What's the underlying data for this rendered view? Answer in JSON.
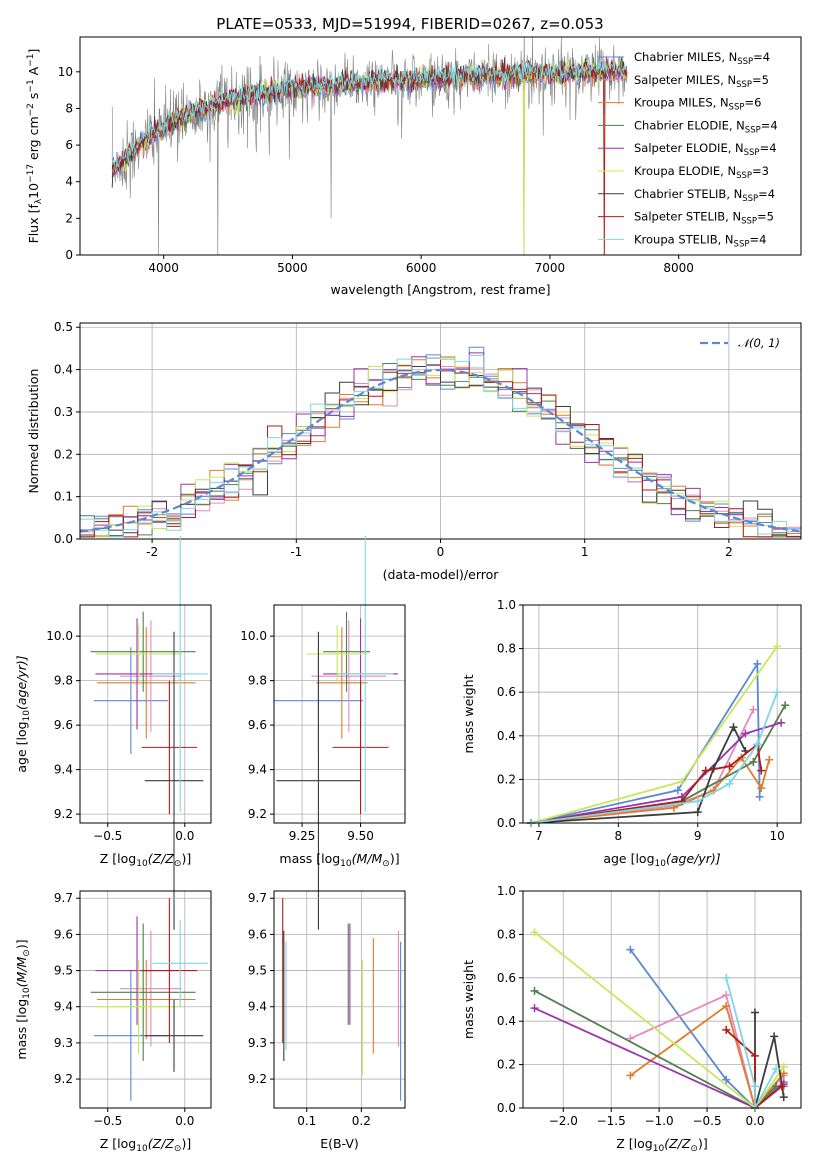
{
  "figure": {
    "title": "PLATE=0533, MJD=51994, FIBERID=0267, z=0.053"
  },
  "colors": {
    "Chabrier MILES": "#5b87d6",
    "Salpeter MILES": "#e58ac1",
    "Kroupa MILES": "#e07c2a",
    "Chabrier ELODIE": "#4f7f4f",
    "Salpeter ELODIE": "#9b34ac",
    "Kroupa ELODIE": "#c8e85a",
    "Chabrier STELIB": "#3c3c3c",
    "Salpeter STELIB": "#b01b1b",
    "Kroupa STELIB": "#7fd7e2",
    "data": "#808080",
    "normal": "#5b87d6"
  },
  "chart_data": [
    {
      "id": "spectrum",
      "type": "line",
      "title": "PLATE=0533, MJD=51994, FIBERID=0267, z=0.053",
      "xlabel": "wavelength [Angstrom, rest frame]",
      "ylabel_main": "Flux [f",
      "ylabel_sub": "λ",
      "ylabel_rest": "10",
      "ylabel_exp": "−17",
      "ylabel_units": " erg cm",
      "ylabel_exp2": "−2",
      "ylabel_s": " s",
      "ylabel_exp3": "−1",
      "ylabel_a": " A",
      "ylabel_exp4": "−1",
      "ylabel_end": "]",
      "xlim": [
        3350,
        8950
      ],
      "ylim": [
        0,
        11.9
      ],
      "xticks": [
        4000,
        5000,
        6000,
        7000,
        8000
      ],
      "yticks": [
        0,
        2,
        4,
        6,
        8,
        10
      ],
      "legend_position": "right",
      "legend": [
        {
          "label": "Chabrier MILES, N",
          "sub": "SSP",
          "tail": "=4"
        },
        {
          "label": "Salpeter MILES, N",
          "sub": "SSP",
          "tail": "=5"
        },
        {
          "label": "Kroupa MILES, N",
          "sub": "SSP",
          "tail": "=6"
        },
        {
          "label": "Chabrier ELODIE, N",
          "sub": "SSP",
          "tail": "=4"
        },
        {
          "label": "Salpeter ELODIE, N",
          "sub": "SSP",
          "tail": "=4"
        },
        {
          "label": "Kroupa ELODIE, N",
          "sub": "SSP",
          "tail": "=3"
        },
        {
          "label": "Chabrier STELIB, N",
          "sub": "SSP",
          "tail": "=4"
        },
        {
          "label": "Salpeter STELIB, N",
          "sub": "SSP",
          "tail": "=5"
        },
        {
          "label": "Kroupa STELIB, N",
          "sub": "SSP",
          "tail": "=4"
        }
      ],
      "continuum_points": [
        [
          3600,
          4.6
        ],
        [
          3700,
          5.2
        ],
        [
          3850,
          6.3
        ],
        [
          3950,
          6.8
        ],
        [
          4100,
          7.4
        ],
        [
          4300,
          8.0
        ],
        [
          4600,
          8.6
        ],
        [
          5000,
          9.1
        ],
        [
          5500,
          9.4
        ],
        [
          6000,
          9.6
        ],
        [
          6500,
          9.8
        ],
        [
          7000,
          9.9
        ],
        [
          7400,
          10.0
        ],
        [
          7600,
          10.0
        ]
      ],
      "drops": [
        4420,
        6800,
        7420
      ]
    },
    {
      "id": "residuals",
      "type": "histogram",
      "xlabel": "(data-model)/error",
      "ylabel": "Normed distribution",
      "xlim": [
        -2.5,
        2.5
      ],
      "ylim": [
        0,
        0.51
      ],
      "xticks": [
        -2,
        -1,
        0,
        1,
        2
      ],
      "ytick_labels": [
        "0.0",
        "0.1",
        "0.2",
        "0.3",
        "0.4",
        "0.5"
      ],
      "yticks": [
        0,
        0.1,
        0.2,
        0.3,
        0.4,
        0.5
      ],
      "grid": true,
      "legend_position": "top-right",
      "legend_label": "𝒩(0, 1)",
      "bin_width": 0.1
    },
    {
      "id": "age-vs-Z",
      "type": "errorbar",
      "xlabel_main": "Z [log",
      "xlabel_sub": "10",
      "xlabel_rest": "(Z/Z",
      "xlabel_sun": "⊙",
      "xlabel_end": ")]",
      "ylabel_main": "age  [log",
      "ylabel_sub": "10",
      "ylabel_rest": "(age/yr)]",
      "xlim": [
        -0.68,
        0.17
      ],
      "ylim": [
        9.16,
        10.14
      ],
      "xticks": [
        -0.5,
        0.0
      ],
      "xtick_labels": [
        "−0.5",
        "0.0"
      ],
      "yticks": [
        9.2,
        9.4,
        9.6,
        9.8,
        10.0
      ],
      "ytick_labels": [
        "9.2",
        "9.4",
        "9.6",
        "9.8",
        "10.0"
      ],
      "points": [
        {
          "model": "Chabrier MILES",
          "x": -0.35,
          "xerr": 0.24,
          "y": 9.71,
          "yerr": 0.24
        },
        {
          "model": "Salpeter MILES",
          "x": -0.22,
          "xerr": 0.2,
          "y": 9.82,
          "yerr": 0.25
        },
        {
          "model": "Kroupa MILES",
          "x": -0.25,
          "xerr": 0.32,
          "y": 9.79,
          "yerr": 0.25
        },
        {
          "model": "Chabrier ELODIE",
          "x": -0.27,
          "xerr": 0.34,
          "y": 9.93,
          "yerr": 0.18
        },
        {
          "model": "Salpeter ELODIE",
          "x": -0.31,
          "xerr": 0.27,
          "y": 9.83,
          "yerr": 0.25
        },
        {
          "model": "Kroupa ELODIE",
          "x": -0.3,
          "xerr": 0.28,
          "y": 9.92,
          "yerr": 0.13
        },
        {
          "model": "Chabrier STELIB",
          "x": -0.07,
          "xerr": 0.19,
          "y": 9.35,
          "yerr": 0.67
        },
        {
          "model": "Salpeter STELIB",
          "x": -0.1,
          "xerr": 0.18,
          "y": 9.5,
          "yerr": 0.3
        },
        {
          "model": "Kroupa STELIB",
          "x": -0.03,
          "xerr": 0.18,
          "y": 9.83,
          "yerr": 0.62
        }
      ]
    },
    {
      "id": "age-vs-mass",
      "type": "errorbar",
      "xlabel_main": "mass [log",
      "xlabel_sub": "10",
      "xlabel_rest": "(M/M",
      "xlabel_sun": "⊙",
      "xlabel_end": ")]",
      "xlim": [
        9.13,
        9.69
      ],
      "ylim": [
        9.16,
        10.14
      ],
      "xticks": [
        9.25,
        9.5
      ],
      "xtick_labels": [
        "9.25",
        "9.50"
      ],
      "yticks": [
        9.2,
        9.4,
        9.6,
        9.8,
        10.0
      ],
      "ytick_labels": [
        "9.2",
        "9.4",
        "9.6",
        "9.8",
        "10.0"
      ],
      "points": [
        {
          "model": "Chabrier MILES",
          "x": 9.32,
          "xerr": 0.19,
          "y": 9.71,
          "yerr": 0.24
        },
        {
          "model": "Salpeter MILES",
          "x": 9.45,
          "xerr": 0.16,
          "y": 9.82,
          "yerr": 0.25
        },
        {
          "model": "Kroupa MILES",
          "x": 9.42,
          "xerr": 0.11,
          "y": 9.79,
          "yerr": 0.25
        },
        {
          "model": "Chabrier ELODIE",
          "x": 9.44,
          "xerr": 0.1,
          "y": 9.93,
          "yerr": 0.18
        },
        {
          "model": "Salpeter ELODIE",
          "x": 9.5,
          "xerr": 0.16,
          "y": 9.83,
          "yerr": 0.25
        },
        {
          "model": "Kroupa ELODIE",
          "x": 9.4,
          "xerr": 0.13,
          "y": 9.92,
          "yerr": 0.13
        },
        {
          "model": "Chabrier STELIB",
          "x": 9.32,
          "xerr": 0.18,
          "y": 9.35,
          "yerr": 0.67
        },
        {
          "model": "Salpeter STELIB",
          "x": 9.5,
          "xerr": 0.12,
          "y": 9.5,
          "yerr": 0.3
        },
        {
          "model": "Kroupa STELIB",
          "x": 9.52,
          "xerr": 0.12,
          "y": 9.83,
          "yerr": 0.62
        }
      ]
    },
    {
      "id": "mass-vs-Z",
      "type": "errorbar",
      "xlabel_main": "Z [log",
      "xlabel_sub": "10",
      "xlabel_rest": "(Z/Z",
      "xlabel_sun": "⊙",
      "xlabel_end": ")]",
      "ylabel_main": "mass [log",
      "ylabel_sub": "10",
      "ylabel_rest": "(M/M",
      "ylabel_sun": "⊙",
      "ylabel_end": ")]",
      "xlim": [
        -0.68,
        0.17
      ],
      "ylim": [
        9.12,
        9.72
      ],
      "xticks": [
        -0.5,
        0.0
      ],
      "xtick_labels": [
        "−0.5",
        "0.0"
      ],
      "yticks": [
        9.2,
        9.3,
        9.4,
        9.5,
        9.6,
        9.7
      ],
      "ytick_labels": [
        "9.2",
        "9.3",
        "9.4",
        "9.5",
        "9.6",
        "9.7"
      ],
      "points": [
        {
          "model": "Chabrier MILES",
          "x": -0.35,
          "xerr": 0.24,
          "y": 9.32,
          "yerr": 0.18
        },
        {
          "model": "Salpeter MILES",
          "x": -0.22,
          "xerr": 0.2,
          "y": 9.45,
          "yerr": 0.16
        },
        {
          "model": "Kroupa MILES",
          "x": -0.25,
          "xerr": 0.32,
          "y": 9.42,
          "yerr": 0.11
        },
        {
          "model": "Chabrier ELODIE",
          "x": -0.27,
          "xerr": 0.34,
          "y": 9.44,
          "yerr": 0.19
        },
        {
          "model": "Salpeter ELODIE",
          "x": -0.31,
          "xerr": 0.27,
          "y": 9.5,
          "yerr": 0.15
        },
        {
          "model": "Kroupa ELODIE",
          "x": -0.3,
          "xerr": 0.28,
          "y": 9.4,
          "yerr": 0.13
        },
        {
          "model": "Chabrier STELIB",
          "x": -0.07,
          "xerr": 0.19,
          "y": 9.32,
          "yerr": 0.1
        },
        {
          "model": "Salpeter STELIB",
          "x": -0.1,
          "xerr": 0.18,
          "y": 9.5,
          "yerr": 0.2
        },
        {
          "model": "Kroupa STELIB",
          "x": -0.03,
          "xerr": 0.18,
          "y": 9.52,
          "yerr": 0.12
        }
      ]
    },
    {
      "id": "mass-vs-EBV",
      "type": "errorbar",
      "xlabel": "E(B-V)",
      "xlim": [
        0.04,
        0.28
      ],
      "ylim": [
        9.12,
        9.72
      ],
      "xticks": [
        0.1,
        0.2
      ],
      "xtick_labels": [
        "0.1",
        "0.2"
      ],
      "yticks": [
        9.2,
        9.3,
        9.4,
        9.5,
        9.6,
        9.7
      ],
      "ytick_labels": [
        "9.2",
        "9.3",
        "9.4",
        "9.5",
        "9.6",
        "9.7"
      ],
      "points": [
        {
          "model": "Chabrier MILES",
          "x": 0.272,
          "xerr": 0,
          "y": 9.36,
          "yerr": 0.22
        },
        {
          "model": "Salpeter MILES",
          "x": 0.268,
          "xerr": 0,
          "y": 9.45,
          "yerr": 0.16
        },
        {
          "model": "Kroupa MILES",
          "x": 0.222,
          "xerr": 0,
          "y": 9.43,
          "yerr": 0.16
        },
        {
          "model": "Chabrier ELODIE",
          "x": 0.176,
          "xerr": 0,
          "y": 9.49,
          "yerr": 0.14
        },
        {
          "model": "Salpeter ELODIE",
          "x": 0.179,
          "xerr": 0,
          "y": 9.49,
          "yerr": 0.14
        },
        {
          "model": "Kroupa ELODIE",
          "x": 0.202,
          "xerr": 0,
          "y": 9.37,
          "yerr": 0.16
        },
        {
          "model": "Chabrier STELIB",
          "x": 0.058,
          "xerr": 0,
          "y": 9.43,
          "yerr": 0.18
        },
        {
          "model": "Salpeter STELIB",
          "x": 0.056,
          "xerr": 0,
          "y": 9.5,
          "yerr": 0.2
        },
        {
          "model": "Kroupa STELIB",
          "x": 0.062,
          "xerr": 0,
          "y": 9.43,
          "yerr": 0.15
        }
      ]
    },
    {
      "id": "weight-vs-age",
      "type": "line",
      "xlabel_main": "age  [log",
      "xlabel_sub": "10",
      "xlabel_rest": "(age/yr)]",
      "ylabel": "mass weight",
      "xlim": [
        6.8,
        10.3
      ],
      "ylim": [
        0,
        1.0
      ],
      "xticks": [
        7,
        8,
        9,
        10
      ],
      "xtick_labels": [
        "7",
        "8",
        "9",
        "10"
      ],
      "yticks": [
        0,
        0.2,
        0.4,
        0.6,
        0.8,
        1.0
      ],
      "ytick_labels": [
        "0.0",
        "0.2",
        "0.4",
        "0.6",
        "0.8",
        "1.0"
      ],
      "grid": true,
      "series": [
        {
          "model": "Chabrier MILES",
          "x": [
            6.9,
            8.75,
            9.75,
            9.78
          ],
          "y": [
            0.0,
            0.15,
            0.73,
            0.12
          ]
        },
        {
          "model": "Salpeter MILES",
          "x": [
            6.9,
            8.7,
            9.2,
            9.7
          ],
          "y": [
            0.0,
            0.08,
            0.15,
            0.52
          ]
        },
        {
          "model": "Kroupa MILES",
          "x": [
            6.9,
            8.7,
            9.2,
            9.55,
            9.8,
            9.9
          ],
          "y": [
            0.0,
            0.07,
            0.15,
            0.3,
            0.16,
            0.29
          ]
        },
        {
          "model": "Chabrier ELODIE",
          "x": [
            6.9,
            8.8,
            9.7,
            10.1
          ],
          "y": [
            0.0,
            0.1,
            0.28,
            0.54
          ]
        },
        {
          "model": "Salpeter ELODIE",
          "x": [
            6.9,
            8.8,
            9.6,
            10.05
          ],
          "y": [
            0.0,
            0.12,
            0.41,
            0.46
          ]
        },
        {
          "model": "Kroupa ELODIE",
          "x": [
            6.9,
            8.8,
            10.0
          ],
          "y": [
            0.0,
            0.19,
            0.81
          ]
        },
        {
          "model": "Chabrier STELIB",
          "x": [
            6.9,
            9.0,
            9.2,
            9.45,
            9.6
          ],
          "y": [
            0.0,
            0.05,
            0.25,
            0.44,
            0.33
          ]
        },
        {
          "model": "Salpeter STELIB",
          "x": [
            6.9,
            8.8,
            9.1,
            9.4,
            9.75,
            9.8
          ],
          "y": [
            0.0,
            0.1,
            0.24,
            0.26,
            0.36,
            0.24
          ]
        },
        {
          "model": "Kroupa STELIB",
          "x": [
            6.9,
            9.0,
            9.4,
            9.75,
            10.0
          ],
          "y": [
            0.0,
            0.1,
            0.18,
            0.36,
            0.6
          ]
        }
      ]
    },
    {
      "id": "weight-vs-Z",
      "type": "line",
      "xlabel_main": "Z [log",
      "xlabel_sub": "10",
      "xlabel_rest": "(Z/Z",
      "xlabel_sun": "⊙",
      "xlabel_end": ")]",
      "ylabel": "mass weight",
      "xlim": [
        -2.42,
        0.48
      ],
      "ylim": [
        0,
        1.0
      ],
      "xticks": [
        -2.0,
        -1.5,
        -1.0,
        -0.5,
        0.0
      ],
      "xtick_labels": [
        "−2.0",
        "−1.5",
        "−1.0",
        "−0.5",
        "0.0"
      ],
      "yticks": [
        0,
        0.2,
        0.4,
        0.6,
        0.8,
        1.0
      ],
      "ytick_labels": [
        "0.0",
        "0.2",
        "0.4",
        "0.6",
        "0.8",
        "1.0"
      ],
      "grid": true,
      "series": [
        {
          "model": "Chabrier MILES",
          "x": [
            -1.3,
            -0.3,
            0.0,
            0.3
          ],
          "y": [
            0.73,
            0.13,
            0.0,
            0.12
          ]
        },
        {
          "model": "Salpeter MILES",
          "x": [
            -1.3,
            -0.3,
            0.0,
            0.3
          ],
          "y": [
            0.32,
            0.52,
            0.0,
            0.15
          ]
        },
        {
          "model": "Kroupa MILES",
          "x": [
            -1.3,
            -0.3,
            0.0,
            0.3,
            0.3
          ],
          "y": [
            0.15,
            0.47,
            0.0,
            0.16,
            0.1
          ]
        },
        {
          "model": "Chabrier ELODIE",
          "x": [
            -2.3,
            0.0,
            0.22
          ],
          "y": [
            0.54,
            0.0,
            0.1
          ]
        },
        {
          "model": "Salpeter ELODIE",
          "x": [
            -2.3,
            0.0,
            0.3
          ],
          "y": [
            0.46,
            0.0,
            0.11
          ]
        },
        {
          "model": "Kroupa ELODIE",
          "x": [
            -2.3,
            0.0,
            0.3
          ],
          "y": [
            0.81,
            0.0,
            0.19
          ]
        },
        {
          "model": "Chabrier STELIB",
          "x": [
            0.0,
            0.0,
            0.2,
            0.3
          ],
          "y": [
            0.44,
            0.0,
            0.33,
            0.05
          ]
        },
        {
          "model": "Salpeter STELIB",
          "x": [
            -0.3,
            0.0,
            0.0,
            0.28
          ],
          "y": [
            0.36,
            0.24,
            0.0,
            0.1
          ]
        },
        {
          "model": "Kroupa STELIB",
          "x": [
            -0.3,
            0.0,
            0.0,
            0.22
          ],
          "y": [
            0.6,
            0.1,
            0.0,
            0.18
          ]
        }
      ]
    }
  ]
}
